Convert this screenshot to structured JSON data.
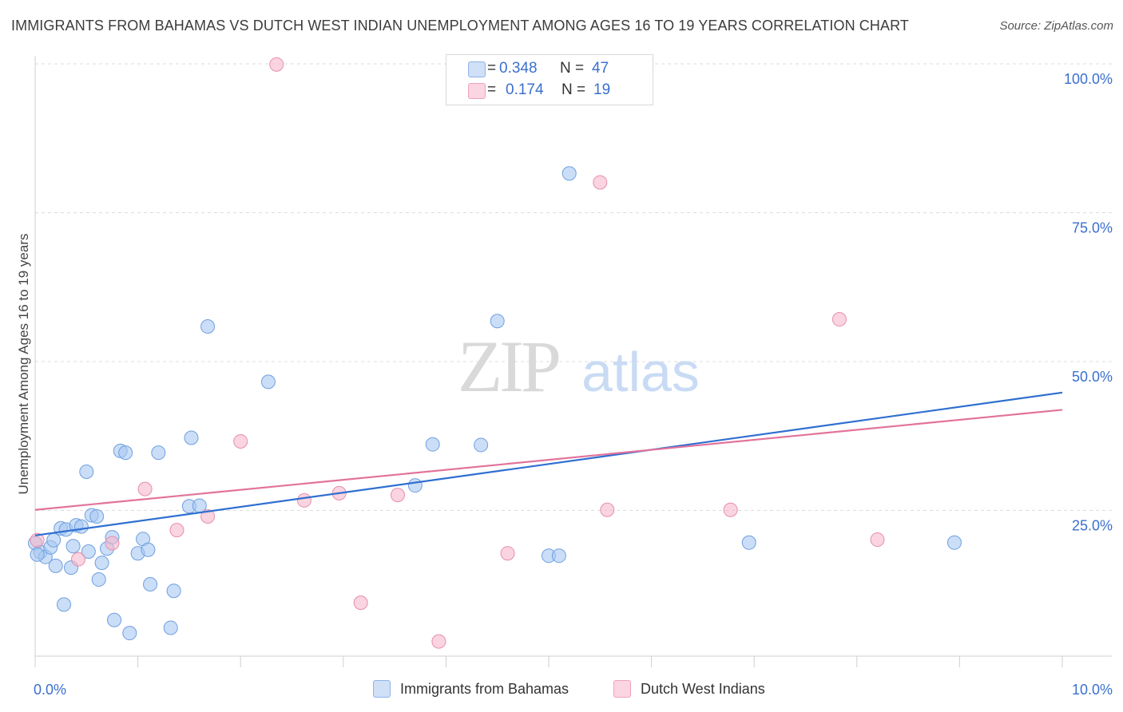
{
  "title": "IMMIGRANTS FROM BAHAMAS VS DUTCH WEST INDIAN UNEMPLOYMENT AMONG AGES 16 TO 19 YEARS CORRELATION CHART",
  "source": "Source: ZipAtlas.com",
  "watermark": {
    "zip": "ZIP",
    "atlas": "atlas"
  },
  "legend_top": {
    "rows": [
      {
        "r_label": "R =",
        "r_value": "0.348",
        "n_label": "N =",
        "n_value": "47",
        "color": "#a9c8f2"
      },
      {
        "r_label": "R =",
        "r_value": "0.174",
        "n_label": "N =",
        "n_value": "19",
        "color": "#f6b7cb"
      }
    ]
  },
  "legend_bottom": [
    {
      "label": "Immigrants from Bahamas",
      "color": "#a9c8f2"
    },
    {
      "label": "Dutch West Indians",
      "color": "#f6b7cb"
    }
  ],
  "chart_data": {
    "type": "scatter",
    "title": "IMMIGRANTS FROM BAHAMAS VS DUTCH WEST INDIAN UNEMPLOYMENT AMONG AGES 16 TO 19 YEARS CORRELATION CHART",
    "xlabel": "",
    "ylabel": "Unemployment Among Ages 16 to 19 years",
    "xlim": [
      0,
      10
    ],
    "ylim": [
      0,
      100
    ],
    "x_tick_labels": [
      "0.0%",
      "10.0%"
    ],
    "y_tick_labels": [
      "25.0%",
      "50.0%",
      "75.0%",
      "100.0%"
    ],
    "y_ticks": [
      25,
      50,
      75,
      100
    ],
    "grid": true,
    "series": [
      {
        "name": "Immigrants from Bahamas",
        "color": "#a9c8f2",
        "stroke": "#6f9fe0",
        "line_color": "#2f6fd0",
        "trend": {
          "x": [
            0,
            10
          ],
          "y": [
            20.8,
            44.8
          ]
        },
        "points": [
          [
            0.0,
            19.5
          ],
          [
            0.05,
            18.0
          ],
          [
            0.1,
            17.2
          ],
          [
            0.15,
            18.8
          ],
          [
            0.18,
            20.0
          ],
          [
            0.2,
            15.7
          ],
          [
            0.25,
            22.0
          ],
          [
            0.28,
            9.2
          ],
          [
            0.3,
            21.8
          ],
          [
            0.35,
            15.4
          ],
          [
            0.37,
            19.0
          ],
          [
            0.4,
            22.5
          ],
          [
            0.45,
            22.3
          ],
          [
            0.5,
            31.5
          ],
          [
            0.52,
            18.1
          ],
          [
            0.55,
            24.2
          ],
          [
            0.6,
            24.0
          ],
          [
            0.62,
            13.4
          ],
          [
            0.65,
            16.2
          ],
          [
            0.7,
            18.6
          ],
          [
            0.75,
            20.5
          ],
          [
            0.77,
            6.6
          ],
          [
            0.83,
            35.0
          ],
          [
            0.88,
            34.7
          ],
          [
            0.92,
            4.4
          ],
          [
            1.0,
            17.8
          ],
          [
            1.05,
            20.2
          ],
          [
            1.1,
            18.4
          ],
          [
            1.12,
            12.6
          ],
          [
            1.2,
            34.7
          ],
          [
            1.32,
            5.3
          ],
          [
            1.35,
            11.5
          ],
          [
            1.5,
            25.7
          ],
          [
            1.52,
            37.2
          ],
          [
            1.6,
            25.8
          ],
          [
            1.68,
            55.9
          ],
          [
            2.27,
            46.6
          ],
          [
            3.7,
            29.2
          ],
          [
            3.87,
            36.1
          ],
          [
            4.34,
            36.0
          ],
          [
            4.5,
            56.8
          ],
          [
            5.0,
            17.4
          ],
          [
            5.1,
            17.4
          ],
          [
            5.2,
            81.6
          ],
          [
            6.95,
            19.6
          ],
          [
            8.95,
            19.6
          ],
          [
            0.02,
            17.6
          ]
        ]
      },
      {
        "name": "Dutch West Indians",
        "color": "#f6b7cb",
        "stroke": "#e68fab",
        "line_color": "#e2729b",
        "trend": {
          "x": [
            0,
            10
          ],
          "y": [
            25.1,
            41.9
          ]
        },
        "points": [
          [
            0.02,
            20.0
          ],
          [
            0.42,
            16.8
          ],
          [
            0.75,
            19.5
          ],
          [
            1.07,
            28.6
          ],
          [
            1.38,
            21.7
          ],
          [
            1.68,
            24.0
          ],
          [
            2.0,
            36.6
          ],
          [
            2.35,
            99.9
          ],
          [
            2.62,
            26.7
          ],
          [
            2.96,
            27.9
          ],
          [
            3.17,
            9.5
          ],
          [
            3.53,
            27.6
          ],
          [
            3.93,
            3.0
          ],
          [
            4.6,
            17.8
          ],
          [
            5.5,
            80.1
          ],
          [
            5.57,
            25.1
          ],
          [
            6.77,
            25.1
          ],
          [
            7.83,
            57.1
          ],
          [
            8.2,
            20.1
          ]
        ]
      }
    ]
  }
}
